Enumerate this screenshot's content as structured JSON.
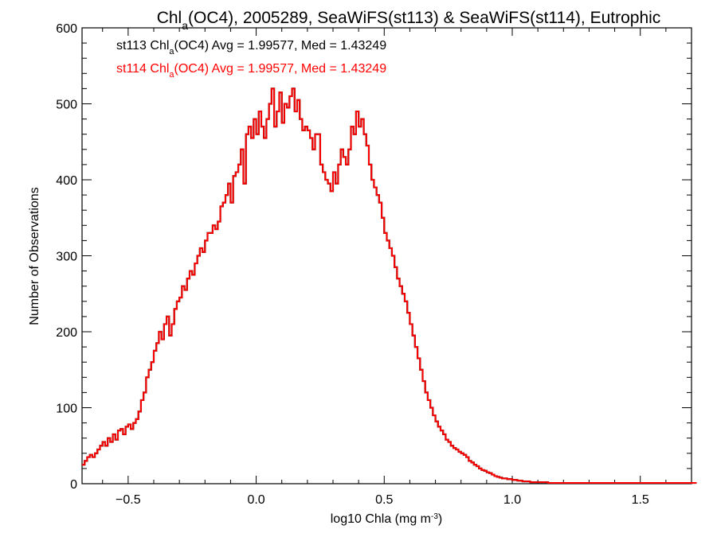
{
  "chart_data": {
    "type": "histogram",
    "title_parts": {
      "pre": "Chl",
      "sub": "a",
      "post": "(OC4), 2005289, SeaWiFS(st113) & SeaWiFS(st114), Eutrophic"
    },
    "xlabel_parts": {
      "pre": "log10 Chla (mg m",
      "sup": "-3",
      "post": ")"
    },
    "ylabel": "Number of Observations",
    "xlim": [
      -0.68,
      1.7
    ],
    "ylim": [
      0,
      600
    ],
    "x_ticks": [
      -0.5,
      0.0,
      0.5,
      1.0,
      1.5
    ],
    "x_tick_labels": [
      "−0.5",
      "0.0",
      "0.5",
      "1.0",
      "1.5"
    ],
    "y_ticks": [
      0,
      100,
      200,
      300,
      400,
      500,
      600
    ],
    "y_tick_labels": [
      "0",
      "100",
      "200",
      "300",
      "400",
      "500",
      "600"
    ],
    "bin_width": 0.01,
    "bin_start": -0.68,
    "legend": [
      {
        "name": "st113",
        "color": "#000000",
        "pre": "st113 Chl",
        "sub": "a",
        "post": "(OC4) Avg = 1.99577, Med = 1.43249"
      },
      {
        "name": "st114",
        "color": "#ff0000",
        "pre": "st114 Chl",
        "sub": "a",
        "post": "(OC4) Avg = 1.99577, Med = 1.43249"
      }
    ],
    "series_colors": [
      "#000000",
      "#ff0000"
    ],
    "counts": [
      25,
      30,
      35,
      38,
      35,
      40,
      45,
      50,
      55,
      50,
      60,
      55,
      65,
      58,
      70,
      72,
      65,
      75,
      78,
      72,
      80,
      85,
      95,
      110,
      120,
      140,
      150,
      160,
      175,
      185,
      200,
      190,
      210,
      220,
      195,
      210,
      230,
      240,
      245,
      260,
      255,
      270,
      280,
      275,
      290,
      300,
      310,
      305,
      320,
      330,
      330,
      340,
      335,
      345,
      365,
      370,
      380,
      395,
      370,
      405,
      410,
      420,
      440,
      395,
      460,
      470,
      455,
      480,
      460,
      490,
      470,
      455,
      480,
      500,
      520,
      470,
      490,
      515,
      475,
      500,
      495,
      510,
      520,
      490,
      505,
      480,
      465,
      470,
      465,
      455,
      440,
      460,
      460,
      420,
      410,
      400,
      395,
      385,
      410,
      395,
      420,
      440,
      430,
      420,
      440,
      470,
      460,
      490,
      470,
      480,
      460,
      445,
      420,
      400,
      390,
      380,
      370,
      350,
      330,
      320,
      310,
      300,
      285,
      270,
      260,
      250,
      240,
      225,
      210,
      195,
      180,
      165,
      150,
      135,
      120,
      110,
      100,
      90,
      82,
      75,
      70,
      65,
      58,
      55,
      50,
      47,
      45,
      42,
      40,
      38,
      35,
      30,
      28,
      25,
      23,
      20,
      18,
      17,
      15,
      14,
      12,
      10,
      9,
      8,
      7,
      7,
      6,
      6,
      5,
      5,
      4,
      4,
      3,
      3,
      3,
      2,
      2,
      2,
      2,
      2,
      2,
      2,
      1,
      1,
      1,
      1,
      1,
      1,
      1,
      1,
      1,
      1,
      1,
      1,
      1,
      1,
      1,
      1,
      1,
      1,
      1,
      1,
      1,
      1,
      1,
      1,
      1,
      1,
      1,
      1,
      1,
      1,
      1,
      1,
      1,
      1,
      1,
      1,
      1,
      1,
      1,
      1,
      1,
      1,
      1,
      1,
      1,
      1,
      1,
      1,
      1,
      1,
      1,
      1,
      1,
      1,
      1,
      1,
      1,
      1
    ]
  }
}
